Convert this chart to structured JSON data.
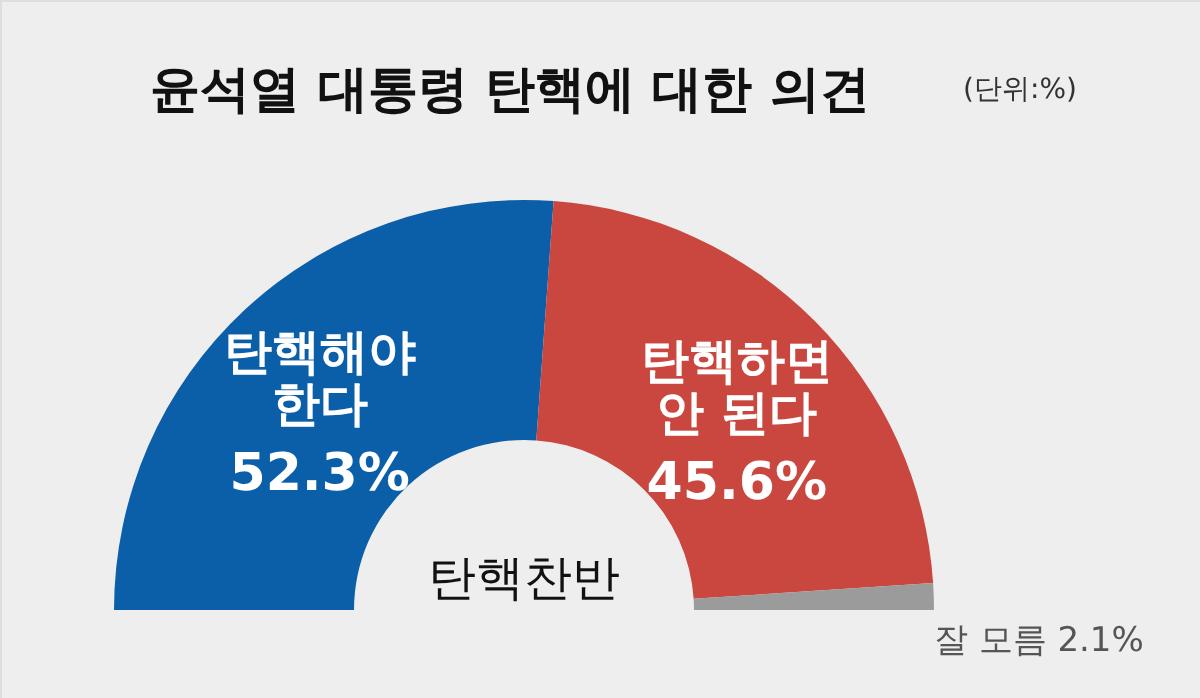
{
  "chart_data": {
    "type": "donut",
    "title": "윤석열 대통령 탄핵에 대한 의견",
    "subtitle": "(단위:%)",
    "categories": [
      "탄핵해야\n한다",
      "탄핵하면\n안 된다",
      "잘 모름"
    ],
    "values": [
      52.3,
      45.6,
      2.1
    ],
    "colors": [
      "#0b5ea8",
      "#c9473f",
      "#9b9b9b"
    ],
    "value_labels": [
      "52.3%",
      "45.6%",
      "2.1%"
    ],
    "annotations": [
      "탄핵찬반"
    ]
  }
}
